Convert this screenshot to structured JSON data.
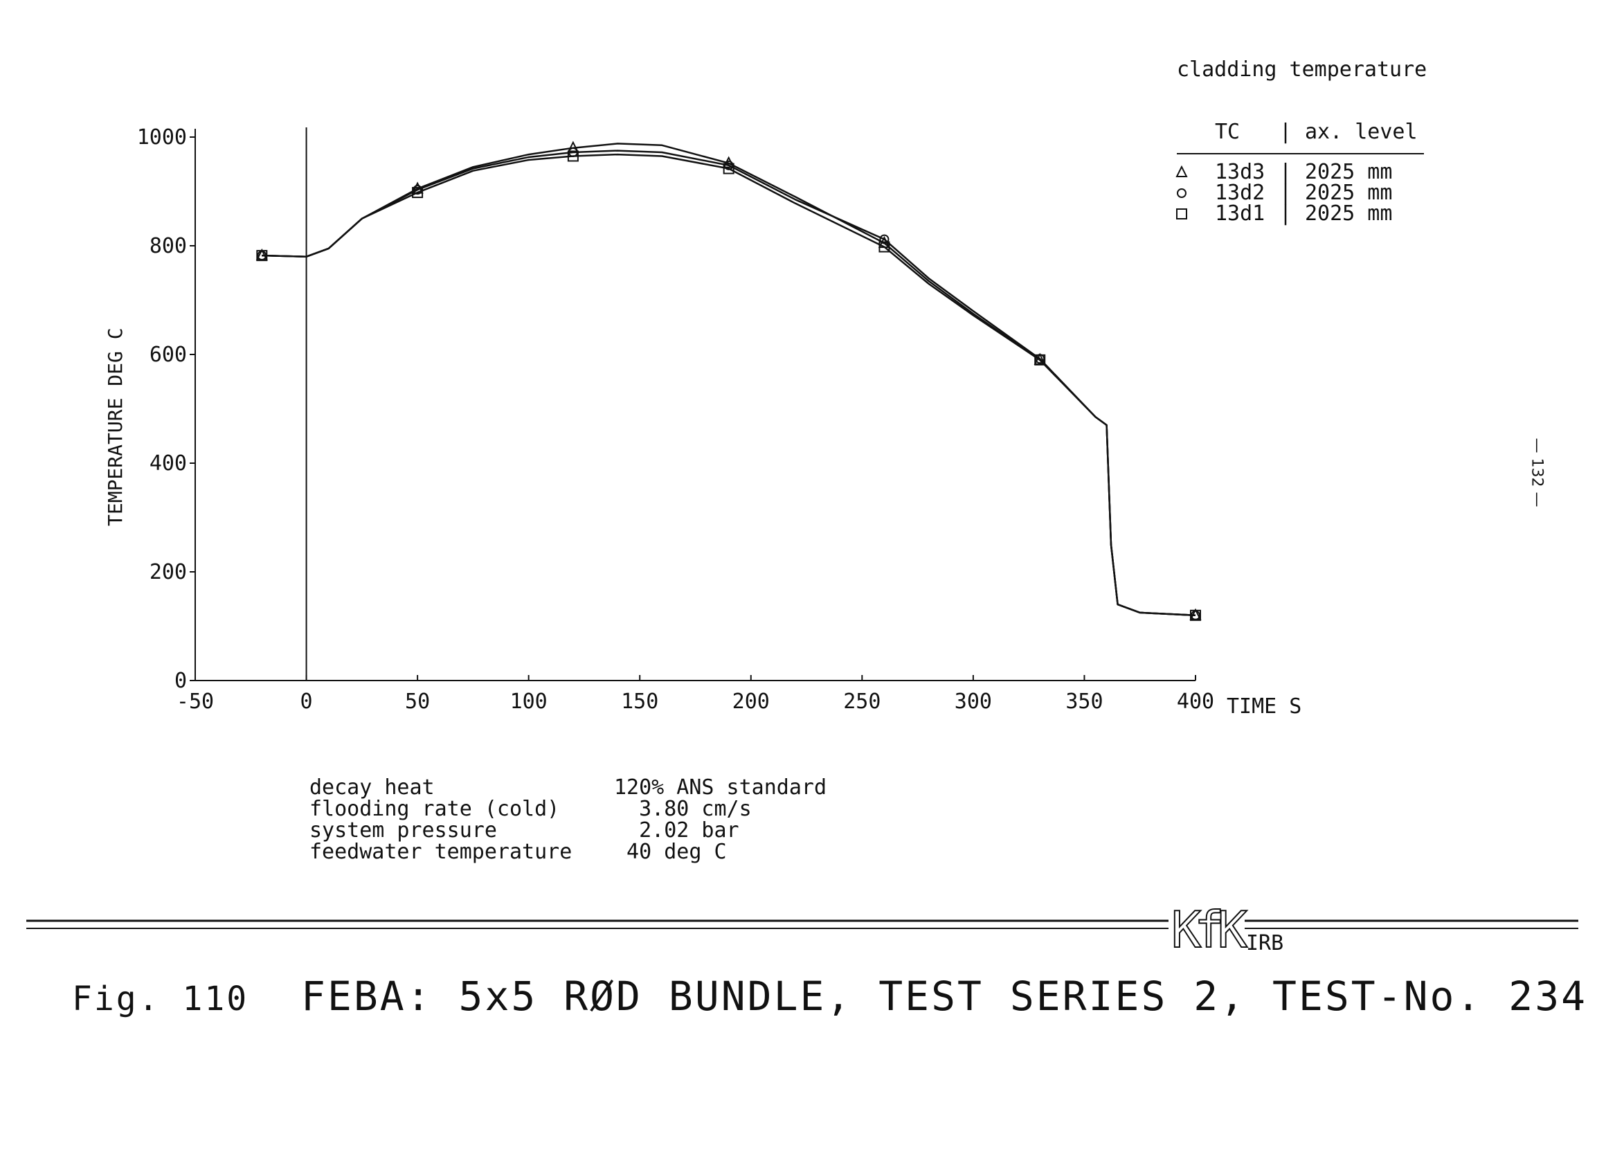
{
  "chart_data": {
    "type": "line",
    "title": "cladding temperature",
    "xlabel": "TIME S",
    "ylabel": "TEMPERATURE DEG C",
    "xlim": [
      -50,
      400
    ],
    "ylim": [
      0,
      1000
    ],
    "x_ticks": [
      "-50",
      "0",
      "50",
      "100",
      "150",
      "200",
      "250",
      "300",
      "350",
      "400"
    ],
    "y_ticks": [
      "0",
      "200",
      "400",
      "600",
      "800",
      "1000"
    ],
    "legend": {
      "header_tc": "TC",
      "header_level": "ax. level",
      "placement": "top-right"
    },
    "series": [
      {
        "name": "13d3",
        "level": "2025 mm",
        "marker": "triangle",
        "x": [
          -20,
          0,
          10,
          25,
          50,
          75,
          100,
          120,
          140,
          160,
          190,
          220,
          260,
          280,
          300,
          330,
          355,
          360,
          362,
          365,
          375,
          400
        ],
        "y": [
          782,
          780,
          795,
          850,
          905,
          945,
          968,
          980,
          988,
          985,
          952,
          890,
          805,
          735,
          675,
          590,
          485,
          470,
          250,
          140,
          125,
          120
        ]
      },
      {
        "name": "13d2",
        "level": "2025 mm",
        "marker": "circle",
        "x": [
          -20,
          0,
          10,
          25,
          50,
          75,
          100,
          120,
          140,
          160,
          190,
          220,
          260,
          280,
          300,
          330,
          355,
          360,
          362,
          365,
          375,
          400
        ],
        "y": [
          782,
          780,
          795,
          850,
          903,
          942,
          963,
          972,
          975,
          972,
          948,
          885,
          812,
          740,
          680,
          592,
          485,
          470,
          250,
          140,
          125,
          120
        ]
      },
      {
        "name": "13d1",
        "level": "2025 mm",
        "marker": "square",
        "x": [
          -20,
          0,
          10,
          25,
          50,
          75,
          100,
          120,
          140,
          160,
          190,
          220,
          260,
          280,
          300,
          330,
          355,
          360,
          362,
          365,
          375,
          400
        ],
        "y": [
          782,
          780,
          795,
          850,
          898,
          938,
          958,
          965,
          968,
          965,
          942,
          878,
          798,
          730,
          672,
          590,
          485,
          470,
          250,
          140,
          125,
          120
        ]
      }
    ],
    "markers_at": [
      -20,
      50,
      120,
      190,
      260,
      330,
      400
    ]
  },
  "parameters": [
    {
      "label": "decay heat",
      "value": "120% ANS standard"
    },
    {
      "label": "flooding rate (cold)",
      "value": "  3.80 cm/s"
    },
    {
      "label": "system pressure",
      "value": "  2.02 bar"
    },
    {
      "label": "feedwater temperature",
      "value": " 40 deg C"
    }
  ],
  "caption": {
    "fig": "Fig. 110",
    "text": "FEBA: 5x5 RØD BUNDLE, TEST SERIES 2, TEST-No. 234"
  },
  "logo": {
    "text": "KfK",
    "sub": "IRB"
  },
  "page_number": "— 132 —"
}
